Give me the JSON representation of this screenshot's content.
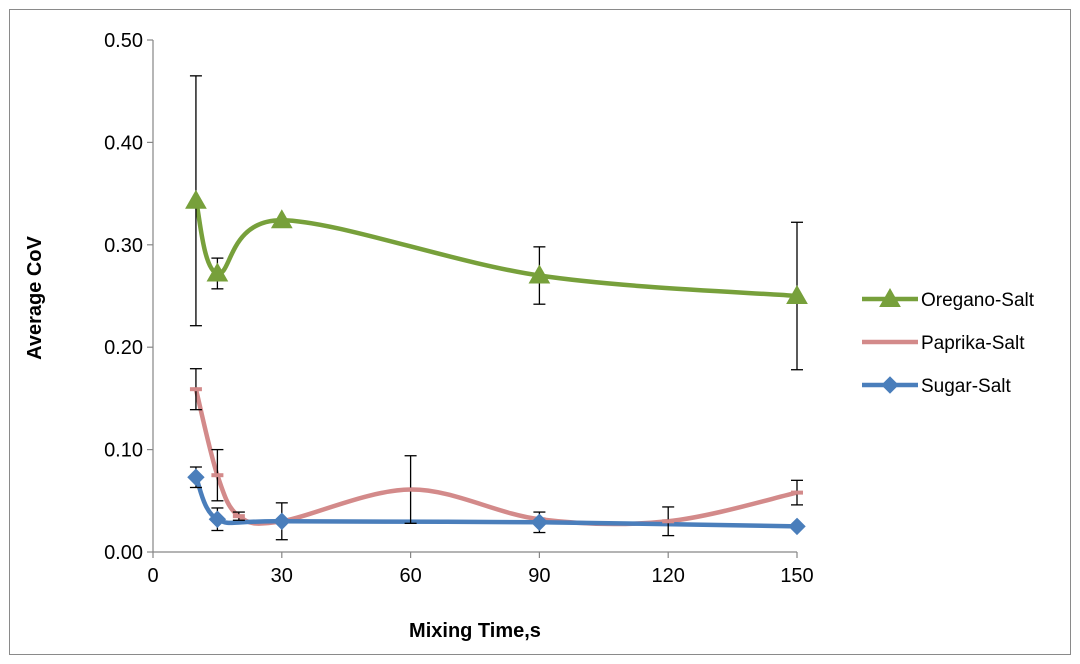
{
  "chart_data": {
    "type": "line",
    "xlabel": "Mixing Time,s",
    "ylabel": "Average CoV",
    "xlim": [
      0,
      150
    ],
    "ylim": [
      0,
      0.5
    ],
    "xticks": [
      "0",
      "30",
      "60",
      "90",
      "120",
      "150"
    ],
    "yticks": [
      "0.00",
      "0.10",
      "0.20",
      "0.30",
      "0.40",
      "0.50"
    ],
    "grid": false,
    "legend_position": "right",
    "series": [
      {
        "name": "Oregano-Salt",
        "color": "#77A03B",
        "marker": "triangle",
        "x": [
          10,
          15,
          30,
          90,
          150
        ],
        "y": [
          0.343,
          0.272,
          0.324,
          0.27,
          0.25
        ],
        "err": [
          0.122,
          0.015,
          0.0,
          0.028,
          0.072
        ]
      },
      {
        "name": "Paprika-Salt",
        "color": "#D38A8A",
        "marker": "dash",
        "x": [
          10,
          15,
          20,
          30,
          60,
          90,
          120,
          150
        ],
        "y": [
          0.159,
          0.075,
          0.035,
          0.03,
          0.061,
          0.032,
          0.03,
          0.058
        ],
        "err": [
          0.02,
          0.025,
          0.004,
          0.0,
          0.033,
          0.0,
          0.014,
          0.012
        ]
      },
      {
        "name": "Sugar-Salt",
        "color": "#4A7EBB",
        "marker": "diamond",
        "x": [
          10,
          15,
          30,
          90,
          150
        ],
        "y": [
          0.073,
          0.032,
          0.03,
          0.029,
          0.025
        ],
        "err": [
          0.01,
          0.011,
          0.018,
          0.01,
          0.0
        ]
      }
    ]
  }
}
